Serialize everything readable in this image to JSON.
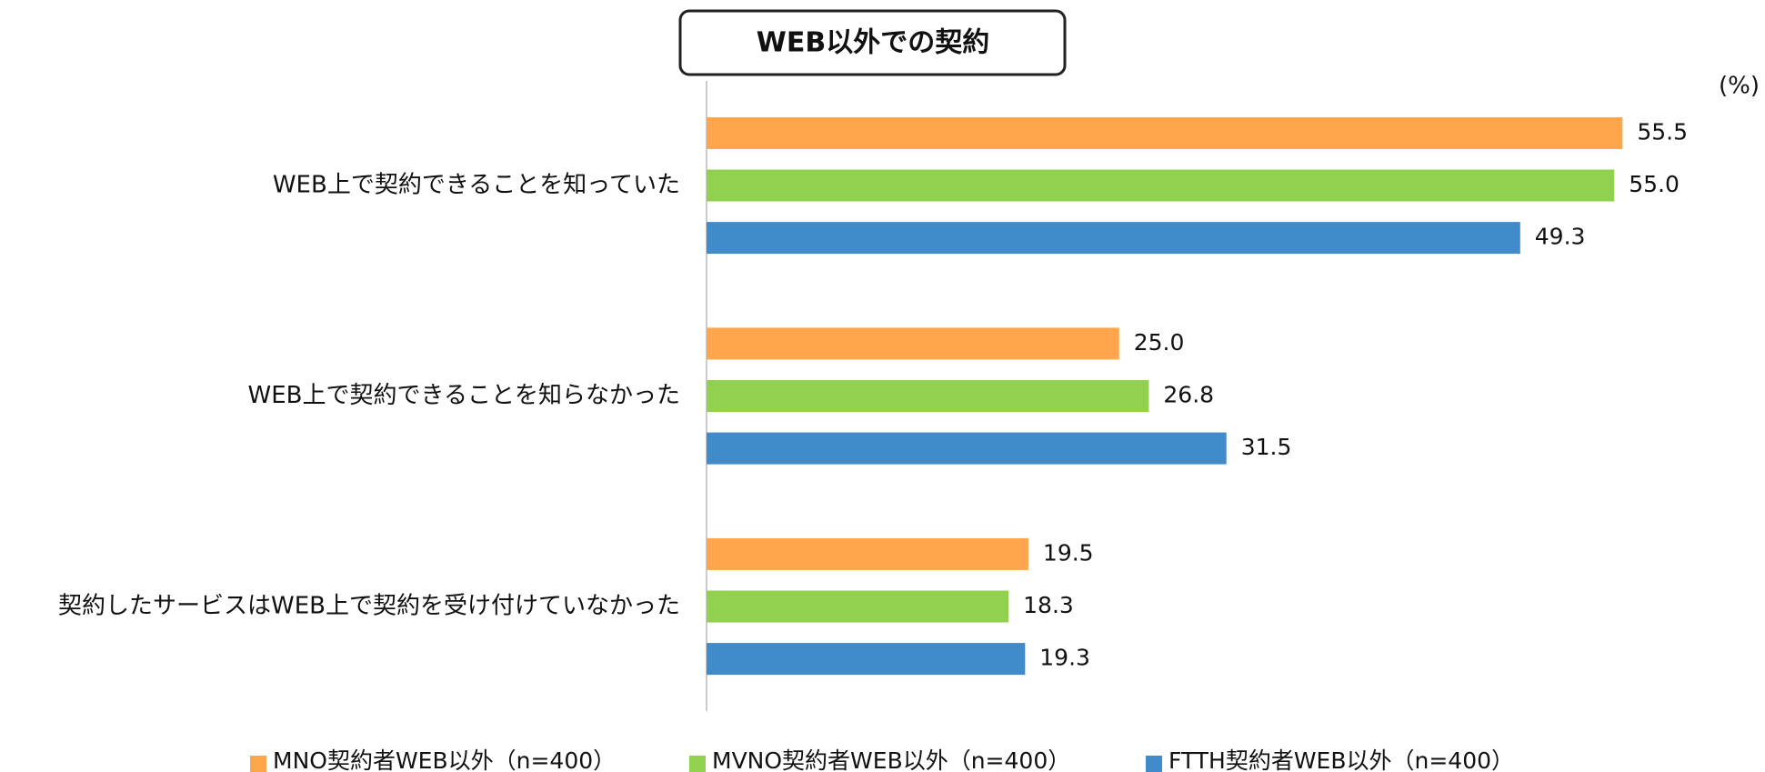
{
  "chart_data": {
    "type": "bar",
    "orientation": "horizontal",
    "title": "WEB以外での契約",
    "unit": "(%)",
    "categories": [
      "WEB上で契約できることを知っていた",
      "WEB上で契約できることを知らなかった",
      "契約したサービスはWEB上で契約を受け付けていなかった"
    ],
    "series": [
      {
        "name": "MNO契約者WEB以外（n=400）",
        "color": "#ffa64d",
        "values": [
          55.5,
          25,
          19.5
        ],
        "value_labels": [
          "55.5",
          "25.0",
          "19.5"
        ]
      },
      {
        "name": "MVNO契約者WEB以外（n=400）",
        "color": "#92d050",
        "values": [
          55,
          26.8,
          18.3
        ],
        "value_labels": [
          "55.0",
          "26.8",
          "18.3"
        ]
      },
      {
        "name": "FTTH契約者WEB以外（n=400）",
        "color": "#428bca",
        "values": [
          49.3,
          31.5,
          19.3
        ],
        "value_labels": [
          "49.3",
          "31.5",
          "19.3"
        ]
      }
    ],
    "xlim": [
      0,
      60
    ],
    "legend": "bottom"
  }
}
